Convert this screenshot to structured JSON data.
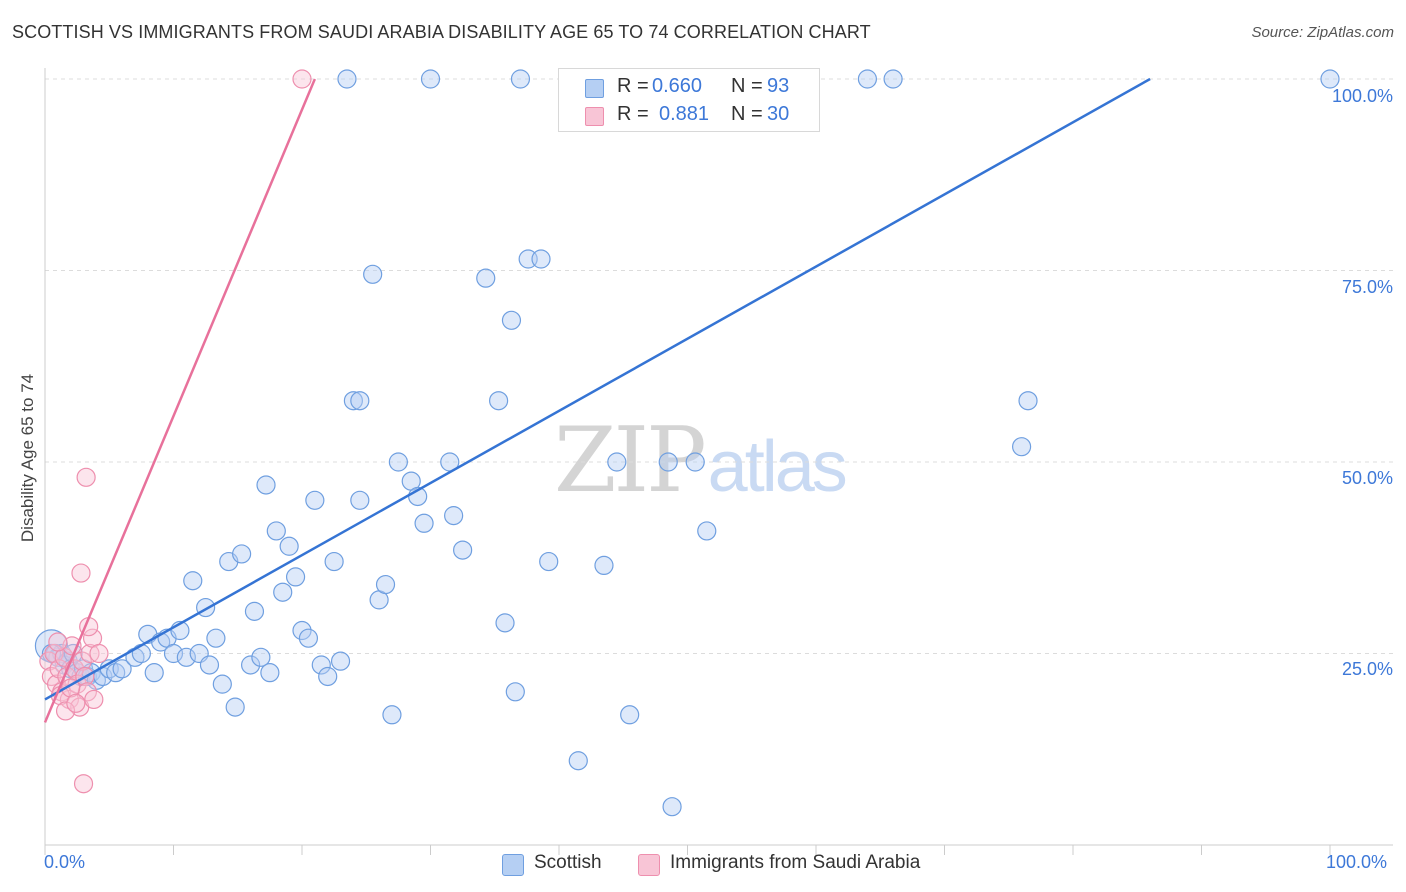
{
  "header": {
    "title": "SCOTTISH VS IMMIGRANTS FROM SAUDI ARABIA DISABILITY AGE 65 TO 74 CORRELATION CHART",
    "source": "Source: ZipAtlas.com"
  },
  "watermark": {
    "zip": "ZIP",
    "atlas": "atlas"
  },
  "legend_top": {
    "rows": [
      {
        "r_label": "R = ",
        "r_value": "0.660",
        "n_label": "N = ",
        "n_value": "93"
      },
      {
        "r_label": "R = ",
        "r_value": "0.881",
        "n_label": "N = ",
        "n_value": "30"
      }
    ]
  },
  "legend_bottom": {
    "items": [
      "Scottish",
      "Immigrants from Saudi Arabia"
    ]
  },
  "axis_labels": {
    "x_min": "0.0%",
    "x_max": "100.0%",
    "y_ticks": [
      "100.0%",
      "75.0%",
      "50.0%",
      "25.0%"
    ]
  },
  "chart_data": {
    "type": "scatter",
    "title": "SCOTTISH VS IMMIGRANTS FROM SAUDI ARABIA DISABILITY AGE 65 TO 74 CORRELATION CHART",
    "xlabel": "",
    "ylabel": "Disability Age 65 to 74",
    "xlim": [
      0,
      100
    ],
    "ylim": [
      0,
      100
    ],
    "y_ticks": [
      25,
      50,
      75,
      100
    ],
    "grid": "horizontal dashed",
    "colors": {
      "scottish": "#6f9fe0",
      "saudi": "#ee8fae",
      "scottish_line": "#3574d4",
      "saudi_line": "#e8719b"
    },
    "series": [
      {
        "name": "Scottish",
        "r": 0.66,
        "n": 93,
        "trend": {
          "x": [
            0,
            86
          ],
          "y": [
            19,
            100
          ]
        },
        "points": [
          [
            0.5,
            26
          ],
          [
            0.8,
            25
          ],
          [
            1.0,
            24.5
          ],
          [
            1.3,
            25
          ],
          [
            1.5,
            23.5
          ],
          [
            1.8,
            24
          ],
          [
            2.0,
            23
          ],
          [
            2.2,
            25
          ],
          [
            2.5,
            22.5
          ],
          [
            2.8,
            22
          ],
          [
            3.0,
            23
          ],
          [
            3.3,
            22
          ],
          [
            3.6,
            22.5
          ],
          [
            4.0,
            21.5
          ],
          [
            4.5,
            22
          ],
          [
            5.0,
            23
          ],
          [
            5.5,
            22.5
          ],
          [
            6.0,
            23
          ],
          [
            7.0,
            24.5
          ],
          [
            7.5,
            25
          ],
          [
            8.0,
            27.5
          ],
          [
            8.5,
            22.5
          ],
          [
            9.0,
            26.5
          ],
          [
            9.5,
            27
          ],
          [
            10.0,
            25
          ],
          [
            10.5,
            28
          ],
          [
            11.0,
            24.5
          ],
          [
            11.5,
            34.5
          ],
          [
            12.0,
            25
          ],
          [
            12.5,
            31
          ],
          [
            12.8,
            23.5
          ],
          [
            13.3,
            27
          ],
          [
            13.8,
            21
          ],
          [
            14.3,
            37
          ],
          [
            14.8,
            18
          ],
          [
            15.3,
            38
          ],
          [
            16.0,
            23.5
          ],
          [
            16.3,
            30.5
          ],
          [
            16.8,
            24.5
          ],
          [
            17.2,
            47
          ],
          [
            17.5,
            22.5
          ],
          [
            18.0,
            41
          ],
          [
            18.5,
            33
          ],
          [
            19.0,
            39
          ],
          [
            19.5,
            35
          ],
          [
            20.0,
            28
          ],
          [
            20.5,
            27
          ],
          [
            21.0,
            45
          ],
          [
            21.5,
            23.5
          ],
          [
            22.0,
            22
          ],
          [
            22.5,
            37
          ],
          [
            23.0,
            24
          ],
          [
            24.0,
            58
          ],
          [
            24.5,
            58
          ],
          [
            24.5,
            45
          ],
          [
            25.5,
            74.5
          ],
          [
            26.0,
            32
          ],
          [
            26.5,
            34
          ],
          [
            27.0,
            17
          ],
          [
            27.5,
            50
          ],
          [
            28.5,
            47.5
          ],
          [
            29.0,
            45.5
          ],
          [
            29.5,
            42
          ],
          [
            31.5,
            50
          ],
          [
            31.8,
            43
          ],
          [
            32.5,
            38.5
          ],
          [
            34.3,
            74
          ],
          [
            35.3,
            58
          ],
          [
            35.8,
            29
          ],
          [
            36.3,
            68.5
          ],
          [
            36.6,
            20
          ],
          [
            37.6,
            76.5
          ],
          [
            38.6,
            76.5
          ],
          [
            39.2,
            37
          ],
          [
            41.5,
            11
          ],
          [
            43.5,
            36.5
          ],
          [
            44.5,
            50
          ],
          [
            45.5,
            17
          ],
          [
            48.5,
            50
          ],
          [
            48.8,
            5
          ],
          [
            50.6,
            50
          ],
          [
            51.5,
            41
          ],
          [
            76.0,
            52
          ],
          [
            76.5,
            58
          ],
          [
            0.5,
            25
          ],
          [
            23.5,
            100
          ],
          [
            30.0,
            100
          ],
          [
            37.0,
            100
          ],
          [
            43.0,
            100
          ],
          [
            49.0,
            100
          ],
          [
            64.0,
            100
          ],
          [
            66.0,
            100
          ],
          [
            100,
            100
          ]
        ]
      },
      {
        "name": "Immigrants from Saudi Arabia",
        "r": 0.881,
        "n": 30,
        "trend": {
          "x": [
            0,
            21
          ],
          "y": [
            16,
            100
          ]
        },
        "points": [
          [
            0.3,
            24
          ],
          [
            0.5,
            22
          ],
          [
            0.7,
            25
          ],
          [
            0.9,
            21
          ],
          [
            1.1,
            23
          ],
          [
            1.3,
            20
          ],
          [
            1.5,
            24.5
          ],
          [
            1.7,
            22
          ],
          [
            1.9,
            19
          ],
          [
            2.1,
            26
          ],
          [
            2.3,
            23
          ],
          [
            2.5,
            21
          ],
          [
            2.7,
            18
          ],
          [
            2.9,
            24
          ],
          [
            3.1,
            22
          ],
          [
            3.3,
            20
          ],
          [
            3.5,
            25
          ],
          [
            3.7,
            27
          ],
          [
            1.0,
            26.5
          ],
          [
            1.2,
            19.5
          ],
          [
            1.6,
            17.5
          ],
          [
            2.0,
            20.5
          ],
          [
            2.4,
            18.5
          ],
          [
            2.8,
            35.5
          ],
          [
            3.0,
            8
          ],
          [
            3.2,
            48
          ],
          [
            3.4,
            28.5
          ],
          [
            3.8,
            19
          ],
          [
            4.2,
            25
          ],
          [
            20.0,
            100
          ]
        ]
      }
    ]
  }
}
